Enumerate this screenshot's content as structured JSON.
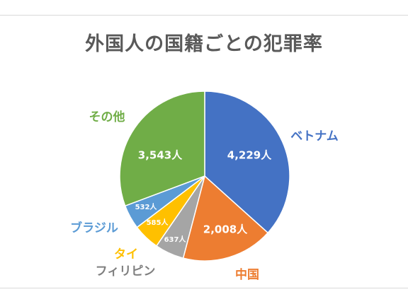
{
  "chart_data": {
    "type": "pie",
    "title": "外国人の国籍ごとの犯罪率",
    "unit": "人",
    "slices": [
      {
        "name": "ベトナム",
        "value": 4229,
        "label": "4,229人",
        "color": "#4472c4"
      },
      {
        "name": "中国",
        "value": 2008,
        "label": "2,008人",
        "color": "#ed7d31"
      },
      {
        "name": "フィリピン",
        "value": 637,
        "label": "637人",
        "color": "#a5a5a5"
      },
      {
        "name": "タイ",
        "value": 585,
        "label": "585人",
        "color": "#ffc000"
      },
      {
        "name": "ブラジル",
        "value": 532,
        "label": "532人",
        "color": "#5b9bd5"
      },
      {
        "name": "その他",
        "value": 3543,
        "label": "3,543人",
        "color": "#70ad47"
      }
    ]
  }
}
